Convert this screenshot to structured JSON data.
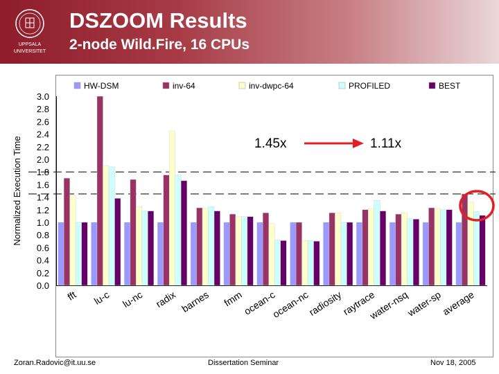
{
  "header": {
    "title": "DSZOOM Results",
    "subtitle": "2-node Wild.Fire, 16 CPUs",
    "logo_line1": "UPPSALA",
    "logo_line2": "UNIVERSITET"
  },
  "footer": {
    "left": "Zoran.Radovic@it.uu.se",
    "center": "Dissertation Seminar",
    "right": "Nov 18, 2005"
  },
  "colors": {
    "header_dark": "#8e1c2a",
    "arrow": "#e31e24",
    "circle": "#e31e24"
  },
  "chart_data": {
    "type": "bar",
    "title": "",
    "xlabel": "",
    "ylabel": "Normalized Execution Time",
    "ylim": [
      0,
      3.0
    ],
    "yticks": [
      "0.0",
      "0.2",
      "0.4",
      "0.6",
      "0.8",
      "1.0",
      "1.2",
      "1.4",
      "1.6",
      "1.8",
      "2.0",
      "2.2",
      "2.4",
      "2.6",
      "2.8",
      "3.0"
    ],
    "legend_position": "top",
    "categories": [
      "fft",
      "lu-c",
      "lu-nc",
      "radix",
      "barnes",
      "fmm",
      "ocean-c",
      "ocean-nc",
      "radiosity",
      "raytrace",
      "water-nsq",
      "water-sp",
      "average"
    ],
    "series": [
      {
        "name": "HW-DSM",
        "color": "#9999ff",
        "values": [
          1.0,
          1.0,
          1.0,
          1.0,
          1.0,
          1.0,
          1.0,
          1.0,
          1.0,
          1.0,
          1.0,
          1.0,
          1.0
        ]
      },
      {
        "name": "inv-64",
        "color": "#993366",
        "values": [
          1.7,
          3.0,
          1.68,
          1.75,
          1.23,
          1.13,
          1.15,
          1.0,
          1.15,
          1.2,
          1.13,
          1.23,
          1.45
        ]
      },
      {
        "name": "inv-dwpc-64",
        "color": "#ffffcc",
        "values": [
          1.42,
          1.9,
          1.25,
          2.45,
          1.22,
          1.09,
          0.98,
          0.71,
          1.15,
          1.22,
          1.15,
          1.22,
          1.32
        ]
      },
      {
        "name": "PROFILED",
        "color": "#ccffff",
        "values": [
          1.0,
          1.88,
          1.18,
          1.75,
          1.25,
          1.09,
          0.72,
          0.71,
          1.0,
          1.35,
          1.06,
          1.2,
          1.17
        ]
      },
      {
        "name": "BEST",
        "color": "#660066",
        "values": [
          1.0,
          1.38,
          1.18,
          1.66,
          1.18,
          1.09,
          0.71,
          0.7,
          1.0,
          1.18,
          1.05,
          1.2,
          1.11
        ]
      }
    ],
    "reference_lines": [
      1.45,
      1.8
    ],
    "annotations": [
      {
        "label": "1.45x"
      },
      {
        "label": "1.11x"
      }
    ]
  }
}
